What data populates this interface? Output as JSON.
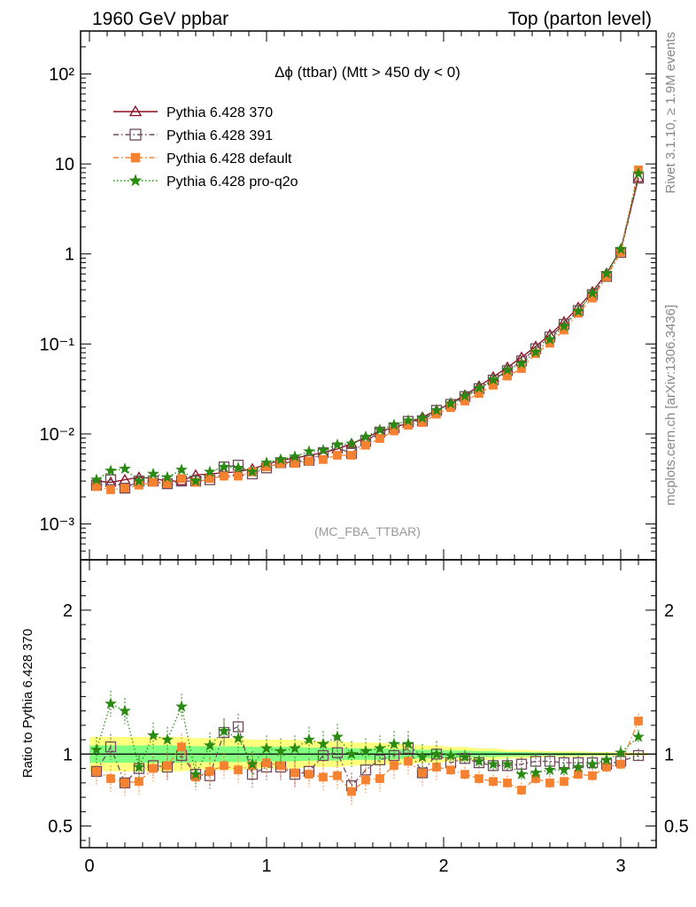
{
  "header": {
    "left": "1960 GeV ppbar",
    "right": "Top (parton level)"
  },
  "side_labels": {
    "rivet": "Rivet 3.1.10, ≥ 1.9M events",
    "site": "mcplots.cern.ch [arXiv:1306.3436]"
  },
  "analysis_tag": "(MC_FBA_TTBAR)",
  "chart_data": [
    {
      "type": "line",
      "panel": "main",
      "title": "Δϕ (ttbar) (Mtt > 450 dy < 0)",
      "yscale": "log",
      "xlim": [
        -0.05,
        3.2
      ],
      "ylim": [
        0.0004,
        300
      ],
      "ytick_labels": [
        "10⁻³",
        "10⁻²",
        "10⁻¹",
        "1",
        "10",
        "10²"
      ],
      "xtick_labels": [
        "0",
        "1",
        "2",
        "3"
      ],
      "x": [
        0.04,
        0.12,
        0.2,
        0.28,
        0.36,
        0.44,
        0.52,
        0.6,
        0.68,
        0.76,
        0.84,
        0.92,
        1.0,
        1.08,
        1.16,
        1.24,
        1.32,
        1.4,
        1.48,
        1.56,
        1.64,
        1.72,
        1.8,
        1.88,
        1.96,
        2.04,
        2.12,
        2.2,
        2.28,
        2.36,
        2.44,
        2.52,
        2.6,
        2.68,
        2.76,
        2.84,
        2.92,
        3.0,
        3.1
      ],
      "series": [
        {
          "name": "Pythia 6.428 370",
          "color": "#8b0d20",
          "marker": "triangle",
          "dash": "",
          "values": [
            0.003,
            0.0029,
            0.0031,
            0.0033,
            0.0032,
            0.003,
            0.003,
            0.0035,
            0.0036,
            0.0037,
            0.0038,
            0.0041,
            0.0046,
            0.0051,
            0.0054,
            0.0058,
            0.0062,
            0.0068,
            0.0078,
            0.0091,
            0.0107,
            0.0118,
            0.0132,
            0.0154,
            0.0183,
            0.022,
            0.027,
            0.034,
            0.043,
            0.055,
            0.071,
            0.094,
            0.127,
            0.176,
            0.255,
            0.38,
            0.61,
            1.12,
            7.0
          ]
        },
        {
          "name": "Pythia 6.428 391",
          "color": "#6f4a5a",
          "marker": "square",
          "dash": "6,3,1.5,3",
          "values": [
            0.0027,
            0.0031,
            0.0025,
            0.003,
            0.003,
            0.0028,
            0.003,
            0.003,
            0.0031,
            0.0043,
            0.0045,
            0.0036,
            0.0042,
            0.0048,
            0.0049,
            0.0051,
            0.0062,
            0.007,
            0.0061,
            0.0083,
            0.0105,
            0.0117,
            0.0138,
            0.014,
            0.0183,
            0.0213,
            0.026,
            0.0319,
            0.0397,
            0.0505,
            0.0648,
            0.0885,
            0.1195,
            0.165,
            0.235,
            0.353,
            0.562,
            1.04,
            6.96
          ]
        },
        {
          "name": "Pythia 6.428 default",
          "color": "#f58231",
          "marker": "filledsquare",
          "dash": "6,3,1.5,3",
          "values": [
            0.0026,
            0.0024,
            0.0025,
            0.0027,
            0.0029,
            0.0028,
            0.0032,
            0.0029,
            0.0032,
            0.0034,
            0.0034,
            0.0038,
            0.0043,
            0.0047,
            0.0047,
            0.005,
            0.0052,
            0.0058,
            0.0058,
            0.0075,
            0.0089,
            0.0108,
            0.0125,
            0.0134,
            0.0166,
            0.0196,
            0.0232,
            0.0282,
            0.0348,
            0.044,
            0.0533,
            0.0782,
            0.1019,
            0.1429,
            0.2198,
            0.3236,
            0.5551,
            1.043,
            8.6
          ]
        },
        {
          "name": "Pythia 6.428 pro-q2o",
          "color": "#2a8a13",
          "marker": "star",
          "dash": "1.5,2.5",
          "values": [
            0.0031,
            0.0039,
            0.0041,
            0.003,
            0.0036,
            0.0033,
            0.004,
            0.003,
            0.0038,
            0.0043,
            0.0042,
            0.0038,
            0.0048,
            0.0052,
            0.0056,
            0.0064,
            0.0066,
            0.0076,
            0.0078,
            0.0093,
            0.0111,
            0.0126,
            0.0141,
            0.0151,
            0.0183,
            0.0218,
            0.0265,
            0.0324,
            0.04,
            0.0514,
            0.0608,
            0.0813,
            0.1124,
            0.1573,
            0.231,
            0.366,
            0.607,
            1.13,
            7.84
          ]
        }
      ]
    },
    {
      "type": "line",
      "panel": "ratio",
      "ylabel": "Ratio to Pythia 6.428 370",
      "xlim": [
        -0.05,
        3.2
      ],
      "ylim": [
        0.35,
        2.35
      ],
      "ytick_labels": [
        "0.5",
        "1",
        "2"
      ],
      "xtick_labels": [
        "0",
        "1",
        "2",
        "3"
      ],
      "x": [
        0.04,
        0.12,
        0.2,
        0.28,
        0.36,
        0.44,
        0.52,
        0.6,
        0.68,
        0.76,
        0.84,
        0.92,
        1.0,
        1.08,
        1.16,
        1.24,
        1.32,
        1.4,
        1.48,
        1.56,
        1.64,
        1.72,
        1.8,
        1.88,
        1.96,
        2.04,
        2.12,
        2.2,
        2.28,
        2.36,
        2.44,
        2.52,
        2.6,
        2.68,
        2.76,
        2.84,
        2.92,
        3.0,
        3.1
      ],
      "band_yellow_halfwidth": [
        0.12,
        0.12,
        0.12,
        0.12,
        0.12,
        0.12,
        0.12,
        0.11,
        0.11,
        0.11,
        0.11,
        0.1,
        0.1,
        0.1,
        0.1,
        0.09,
        0.09,
        0.09,
        0.08,
        0.08,
        0.08,
        0.07,
        0.07,
        0.06,
        0.06,
        0.05,
        0.05,
        0.04,
        0.04,
        0.03,
        0.03,
        0.025,
        0.02,
        0.02,
        0.02,
        0.015,
        0.015,
        0.01,
        0.01
      ],
      "band_green_halfwidth": [
        0.06,
        0.06,
        0.06,
        0.06,
        0.06,
        0.06,
        0.06,
        0.055,
        0.055,
        0.055,
        0.055,
        0.05,
        0.05,
        0.05,
        0.05,
        0.045,
        0.045,
        0.045,
        0.04,
        0.04,
        0.04,
        0.035,
        0.035,
        0.03,
        0.03,
        0.025,
        0.025,
        0.02,
        0.02,
        0.015,
        0.015,
        0.012,
        0.01,
        0.01,
        0.01,
        0.008,
        0.008,
        0.005,
        0.005
      ],
      "series": [
        {
          "name": "Pythia 6.428 391",
          "color": "#6f4a5a",
          "marker": "square",
          "dash": "6,3,1.5,3",
          "values": [
            0.88,
            1.05,
            0.8,
            0.9,
            0.92,
            0.91,
            0.99,
            0.86,
            0.85,
            1.15,
            1.19,
            0.86,
            0.91,
            0.91,
            0.86,
            0.88,
            0.99,
            1.01,
            0.78,
            0.89,
            0.96,
            0.99,
            1.04,
            0.87,
            1.0,
            0.94,
            0.97,
            0.94,
            0.92,
            0.92,
            0.93,
            0.95,
            0.95,
            0.94,
            0.94,
            0.94,
            0.93,
            0.95,
            0.99
          ]
        },
        {
          "name": "Pythia 6.428 default",
          "color": "#f58231",
          "marker": "filledsquare",
          "dash": "6,3,1.5,3",
          "values": [
            0.88,
            0.83,
            0.8,
            0.81,
            0.9,
            0.92,
            1.05,
            0.84,
            0.88,
            0.92,
            0.89,
            0.92,
            0.94,
            0.92,
            0.87,
            0.86,
            0.84,
            0.85,
            0.74,
            0.82,
            0.83,
            0.92,
            0.95,
            0.87,
            0.91,
            0.89,
            0.86,
            0.83,
            0.81,
            0.8,
            0.75,
            0.83,
            0.8,
            0.81,
            0.86,
            0.85,
            0.91,
            0.93,
            1.23
          ]
        },
        {
          "name": "Pythia 6.428 pro-q2o",
          "color": "#2a8a13",
          "marker": "star",
          "dash": "1.5,2.5",
          "values": [
            1.03,
            1.35,
            1.3,
            0.91,
            1.13,
            1.1,
            1.33,
            0.86,
            1.06,
            1.16,
            1.11,
            0.93,
            1.04,
            1.02,
            1.04,
            1.1,
            1.07,
            1.12,
            1.0,
            1.02,
            1.04,
            1.07,
            1.07,
            0.98,
            1.0,
            0.99,
            0.98,
            0.95,
            0.93,
            0.93,
            0.86,
            0.87,
            0.89,
            0.89,
            0.91,
            0.93,
            0.96,
            1.01,
            1.12
          ]
        }
      ]
    }
  ]
}
